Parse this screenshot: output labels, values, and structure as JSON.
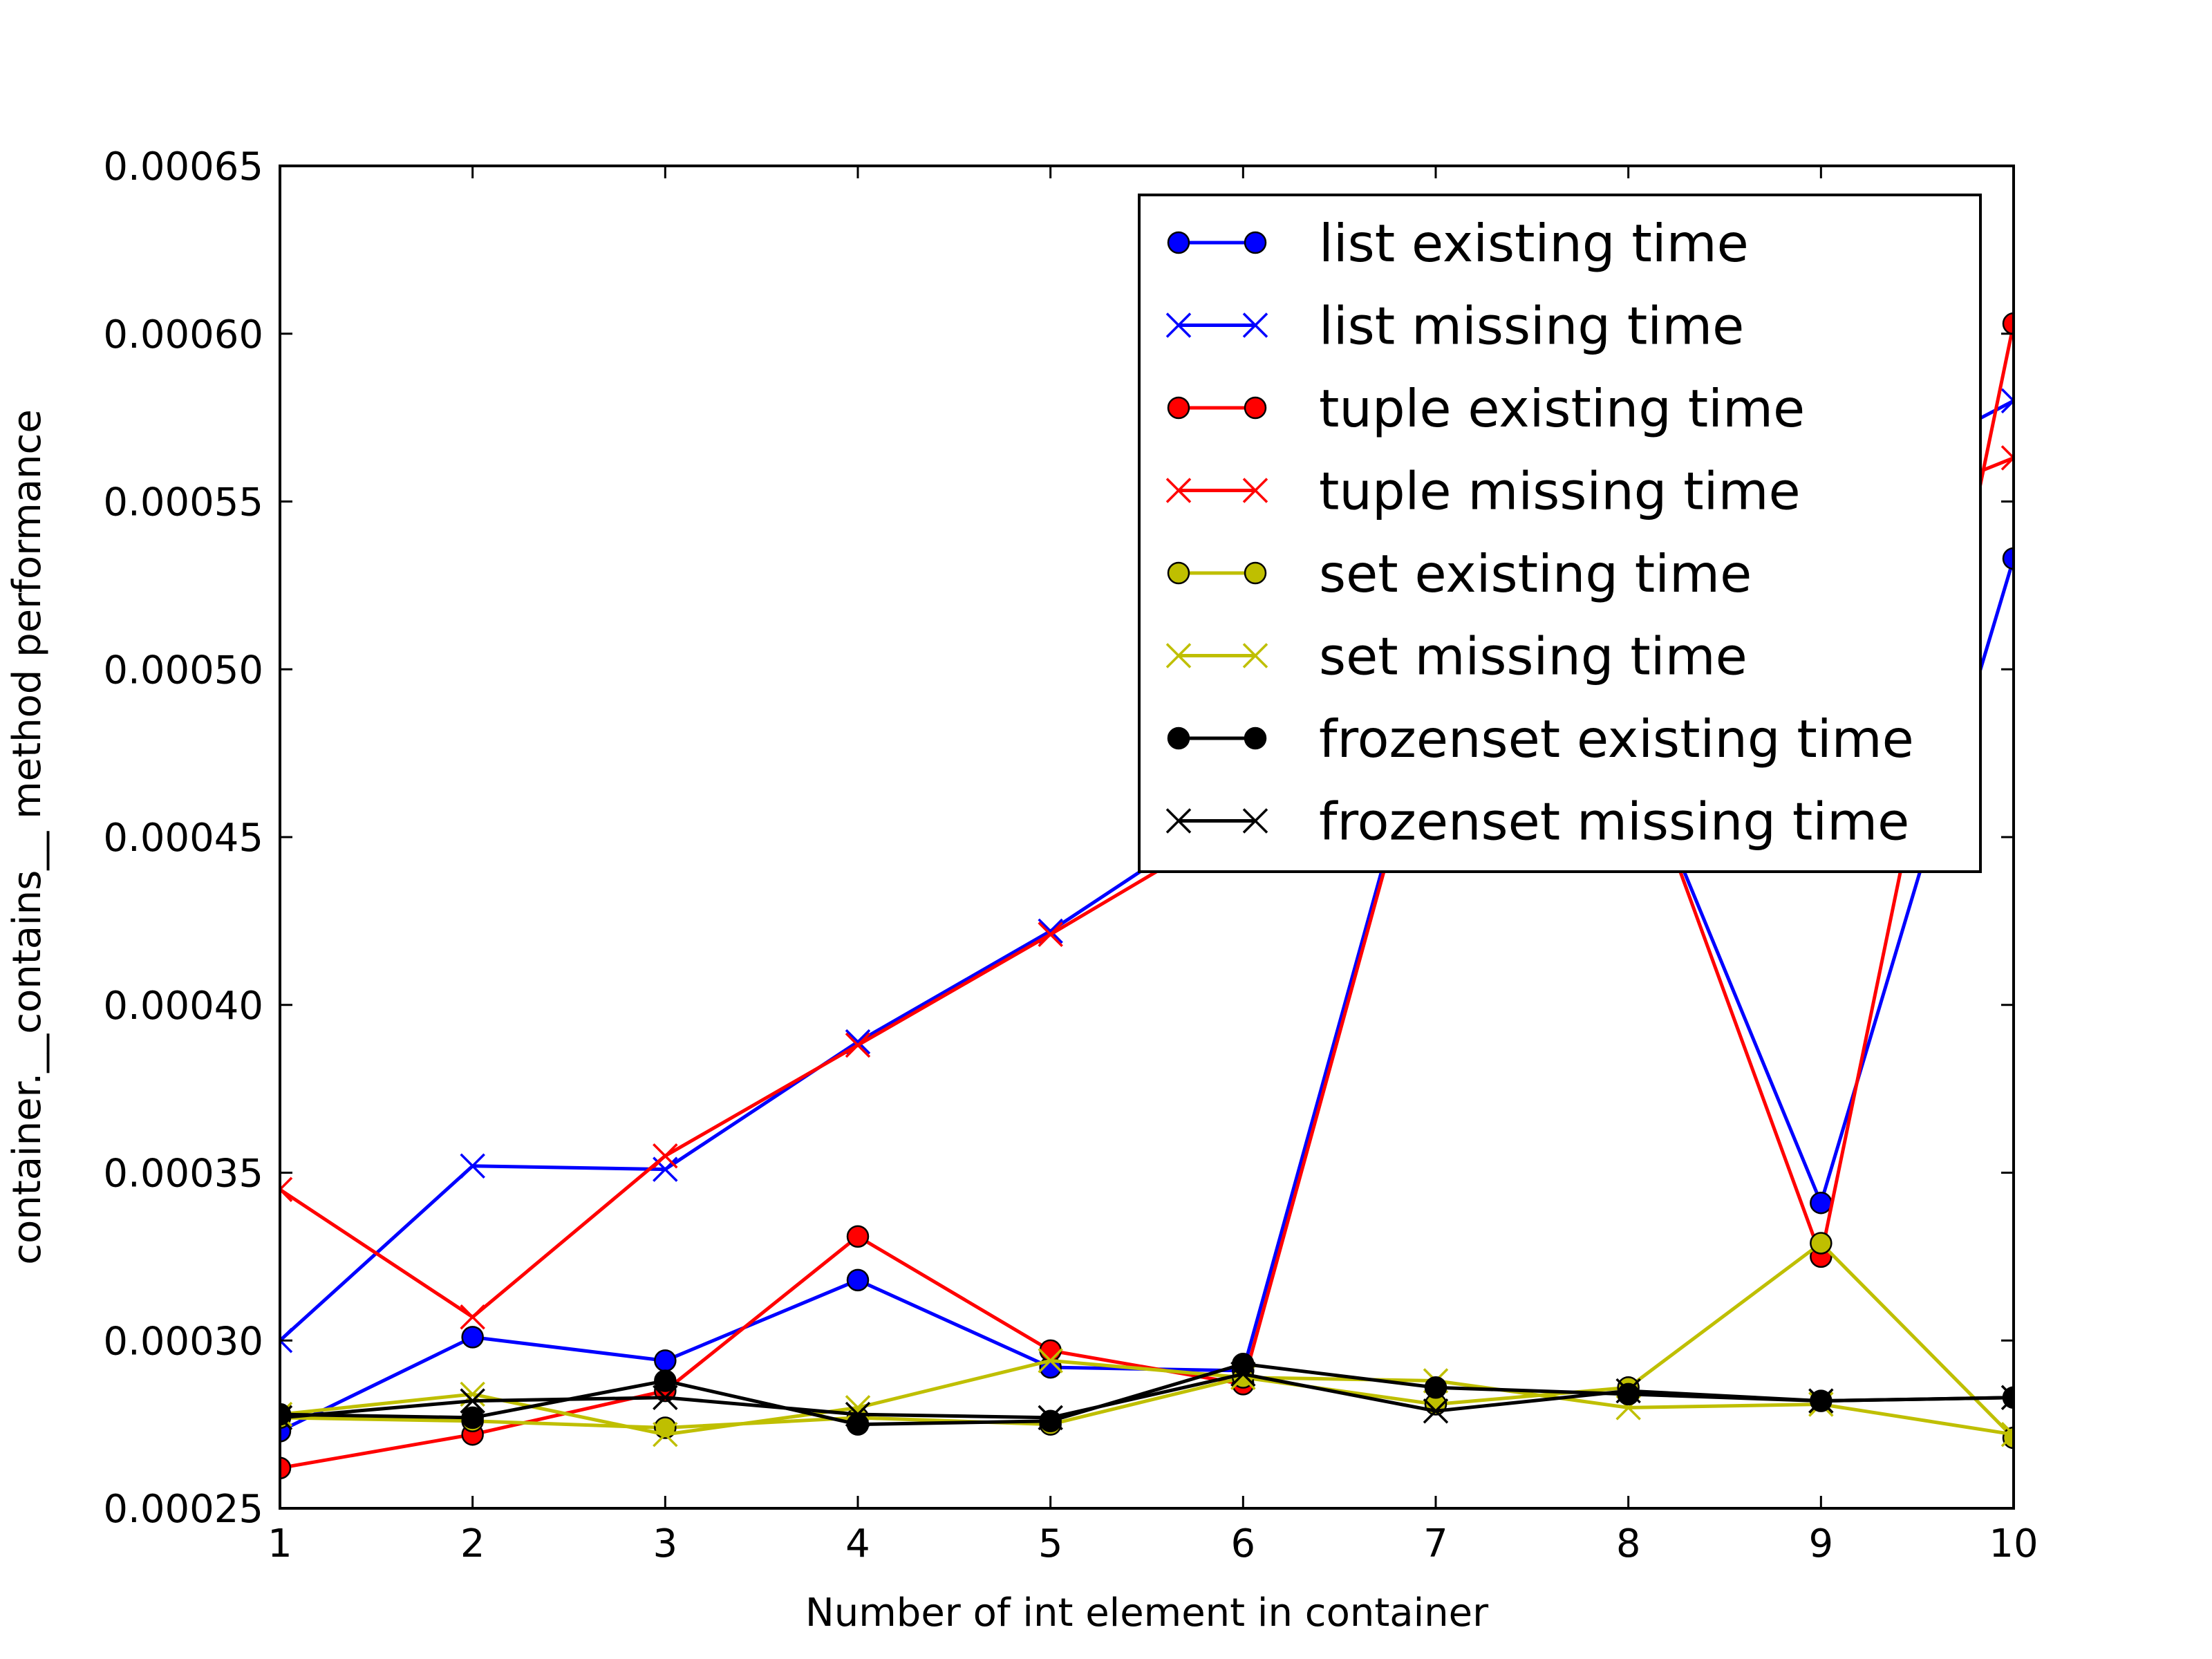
{
  "chart_data": {
    "type": "line",
    "title": "",
    "xlabel": "Number of int element in container",
    "ylabel": "container.__contains__ method performance",
    "xlim": [
      1,
      10
    ],
    "ylim": [
      0.00025,
      0.00065
    ],
    "x": [
      1,
      2,
      3,
      4,
      5,
      6,
      7,
      8,
      9,
      10
    ],
    "xticks": [
      1,
      2,
      3,
      4,
      5,
      6,
      7,
      8,
      9,
      10
    ],
    "xtick_labels": [
      "1",
      "2",
      "3",
      "4",
      "5",
      "6",
      "7",
      "8",
      "9",
      "10"
    ],
    "yticks": [
      0.00025,
      0.0003,
      0.00035,
      0.0004,
      0.00045,
      0.0005,
      0.00055,
      0.0006,
      0.00065
    ],
    "ytick_labels": [
      "0.00025",
      "0.00030",
      "0.00035",
      "0.00040",
      "0.00045",
      "0.00050",
      "0.00055",
      "0.00060",
      "0.00065"
    ],
    "grid": false,
    "legend_position": "upper-right",
    "series": [
      {
        "name": "list existing time",
        "color": "#0000ff",
        "marker": "circle",
        "values": [
          0.000273,
          0.000301,
          0.000294,
          0.000318,
          0.000292,
          0.000291,
          0.000498,
          0.00048,
          0.000341,
          0.000533
        ]
      },
      {
        "name": "list missing time",
        "color": "#0000ff",
        "marker": "x",
        "values": [
          0.0003,
          0.000352,
          0.000351,
          0.000389,
          0.000422,
          0.00046,
          0.00049,
          0.00052,
          0.00055,
          0.00058
        ]
      },
      {
        "name": "tuple existing time",
        "color": "#ff0000",
        "marker": "circle",
        "values": [
          0.000262,
          0.000272,
          0.000285,
          0.000331,
          0.000297,
          0.000287,
          0.000496,
          0.000482,
          0.000325,
          0.000603
        ]
      },
      {
        "name": "tuple missing time",
        "color": "#ff0000",
        "marker": "x",
        "values": [
          0.000345,
          0.000307,
          0.000355,
          0.000388,
          0.000421,
          0.000455,
          0.000487,
          0.000515,
          0.00054,
          0.000563
        ]
      },
      {
        "name": "set existing time",
        "color": "#bfbf00",
        "marker": "circle",
        "values": [
          0.000277,
          0.000276,
          0.000274,
          0.000277,
          0.000275,
          0.000289,
          0.000281,
          0.000286,
          0.000329,
          0.000271
        ]
      },
      {
        "name": "set missing time",
        "color": "#bfbf00",
        "marker": "x",
        "values": [
          0.000278,
          0.000284,
          0.000272,
          0.00028,
          0.000294,
          0.000289,
          0.000288,
          0.00028,
          0.000281,
          0.000272
        ]
      },
      {
        "name": "frozenset existing time",
        "color": "#000000",
        "marker": "circle",
        "values": [
          0.000278,
          0.000277,
          0.000288,
          0.000275,
          0.000276,
          0.000293,
          0.000286,
          0.000284,
          0.000282,
          0.000283
        ]
      },
      {
        "name": "frozenset missing time",
        "color": "#000000",
        "marker": "x",
        "values": [
          0.000277,
          0.000282,
          0.000283,
          0.000278,
          0.000277,
          0.00029,
          0.000279,
          0.000285,
          0.000282,
          0.000283
        ]
      }
    ]
  }
}
